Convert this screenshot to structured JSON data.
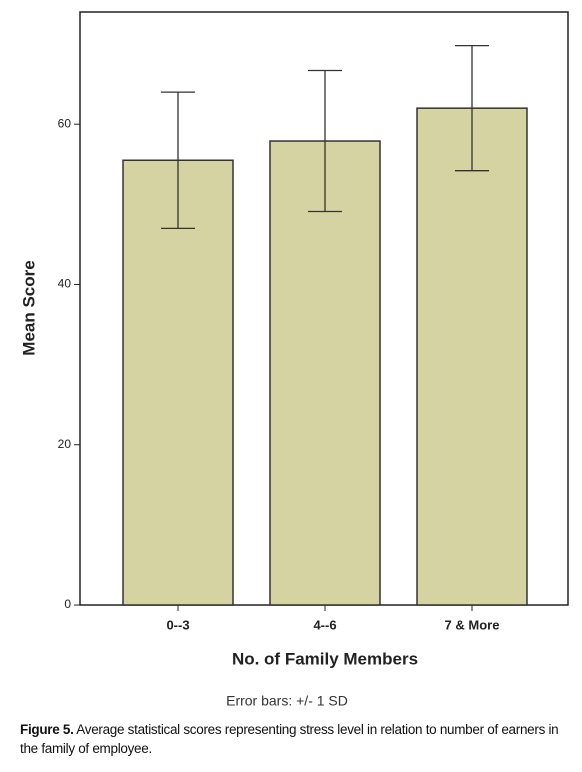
{
  "chart_data": {
    "type": "bar",
    "categories": [
      "0--3",
      "4--6",
      "7 & More"
    ],
    "values": [
      55.5,
      57.9,
      62.0
    ],
    "errors": [
      8.5,
      8.8,
      7.8
    ],
    "color": "#d6d3a3",
    "ylim": [
      0,
      74
    ],
    "yticks": [
      0,
      20,
      40,
      60
    ],
    "y_label": "Mean Score",
    "x_label": "No. of Family Members",
    "note": "Error bars: +/- 1 SD"
  },
  "caption": {
    "label": "Figure 5.",
    "text": "Average statistical scores representing stress level in relation to number of earners in the family of employee."
  }
}
